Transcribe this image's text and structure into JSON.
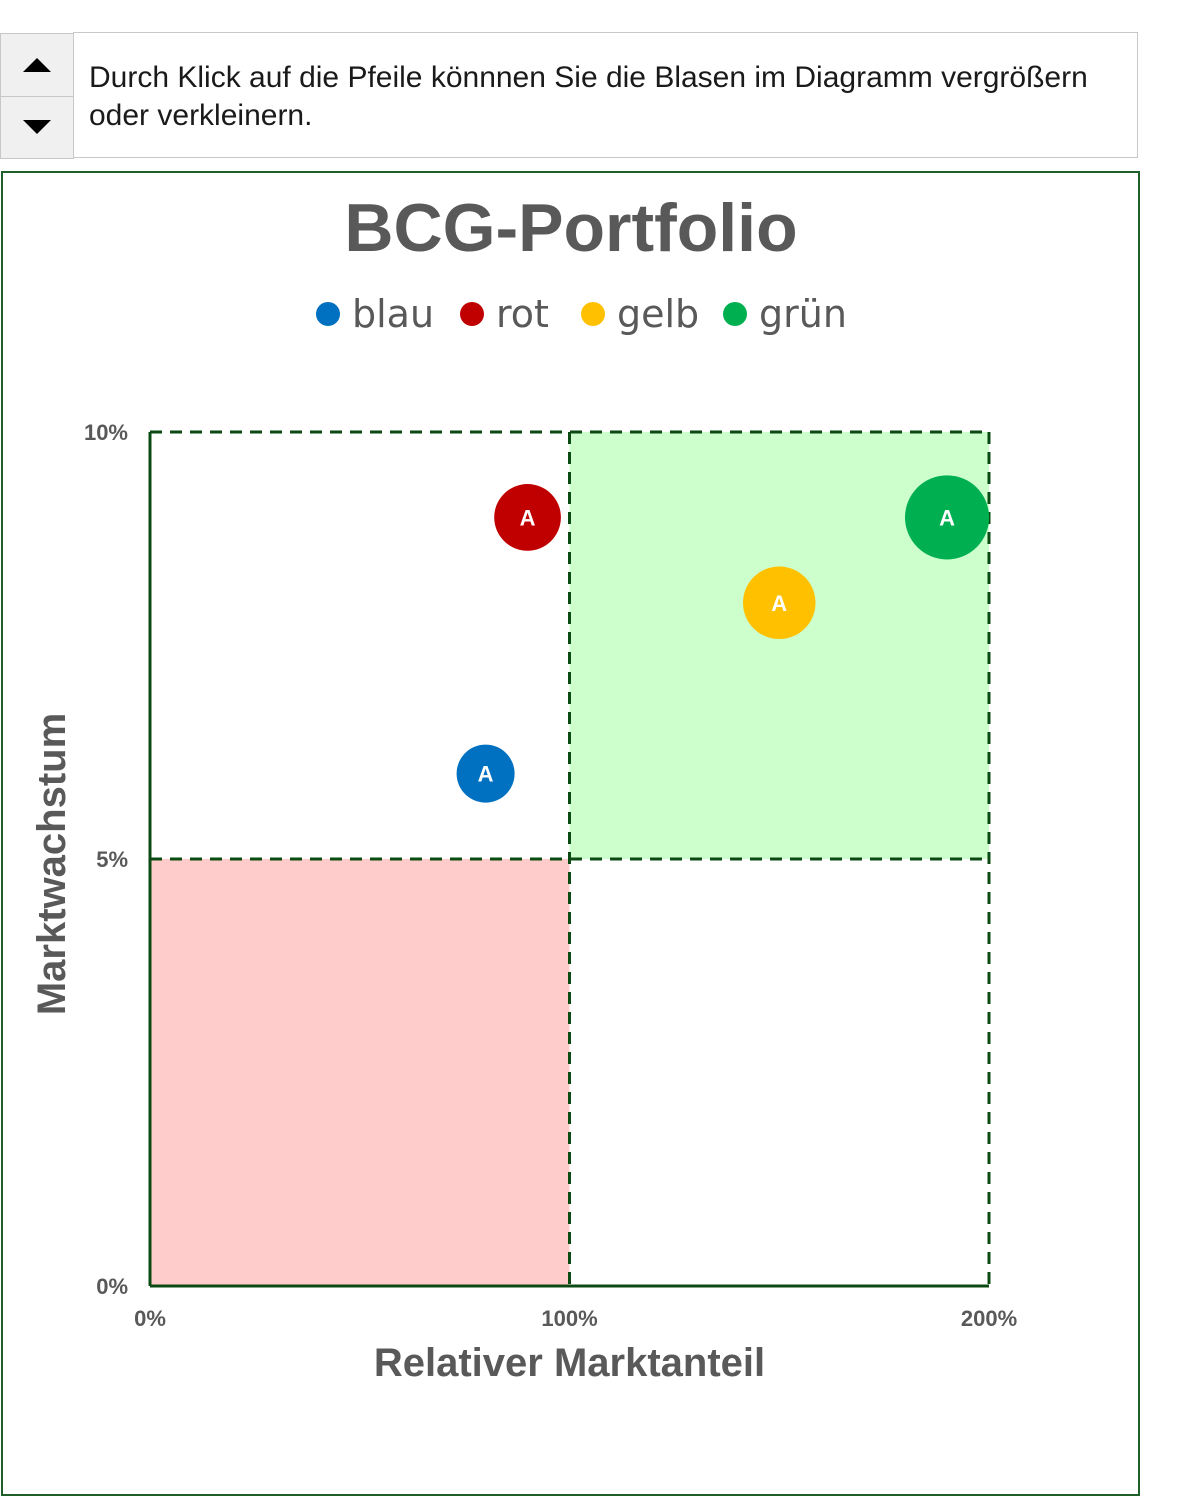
{
  "controls": {
    "up_icon": "triangle-up-icon",
    "down_icon": "triangle-down-icon",
    "instruction": "Durch Klick auf die Pfeile könnnen Sie die Blasen im Diagramm vergrößern oder verkleinern."
  },
  "chart_data": {
    "type": "scatter",
    "title": "BCG-Portfolio",
    "xlabel": "Relativer Marktanteil",
    "ylabel": "Marktwachstum",
    "xlim": [
      0,
      200
    ],
    "ylim": [
      0,
      10
    ],
    "x_ticks": [
      "0%",
      "100%",
      "200%"
    ],
    "y_ticks": [
      "0%",
      "5%",
      "10%"
    ],
    "legend_position": "top",
    "series": [
      {
        "name": "blau",
        "color": "#0070c0",
        "points": [
          {
            "x": 80,
            "y": 6,
            "label": "A",
            "size": 1
          }
        ]
      },
      {
        "name": "rot",
        "color": "#c00000",
        "points": [
          {
            "x": 90,
            "y": 9,
            "label": "A",
            "size": 1.15
          }
        ]
      },
      {
        "name": "gelb",
        "color": "#ffc000",
        "points": [
          {
            "x": 150,
            "y": 8,
            "label": "A",
            "size": 1.25
          }
        ]
      },
      {
        "name": "grün",
        "color": "#00b050",
        "points": [
          {
            "x": 190,
            "y": 9,
            "label": "A",
            "size": 1.45
          }
        ]
      }
    ],
    "quadrant_colors": {
      "top_right": "#ccffcc",
      "bottom_left": "#ffcccc",
      "lines": "#0b4a12"
    }
  }
}
